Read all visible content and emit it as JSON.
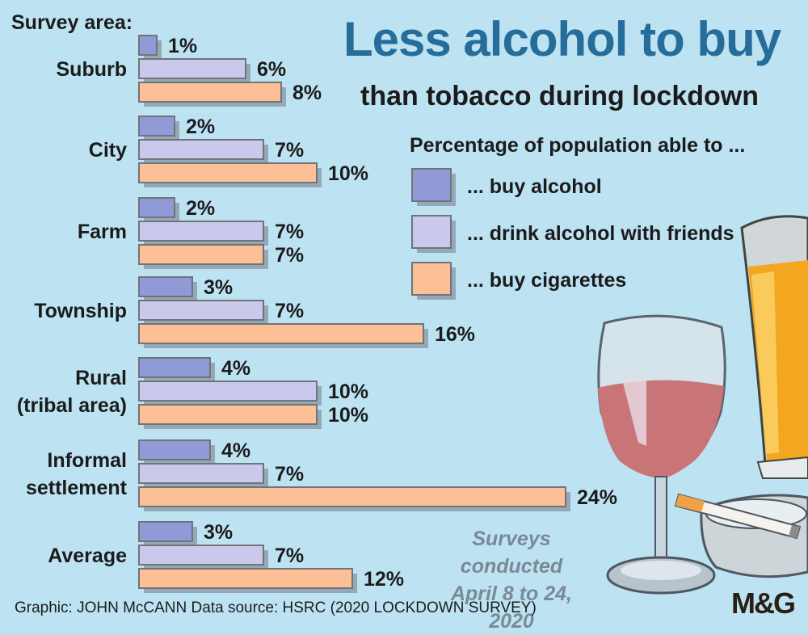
{
  "title": "Less alcohol to buy",
  "subtitle": "than tobacco during lockdown",
  "survey_area_label": "Survey area:",
  "legend_title": "Percentage of population able to ...",
  "note_lines": [
    "Surveys conducted",
    "April 8 to 24, 2020"
  ],
  "footer": "Graphic: JOHN McCANN  Data source: HSRC (2020 LOCKDOWN SURVEY)",
  "brand": "M&G",
  "colors": {
    "background": "#bde3f3",
    "title": "#276d99",
    "buy_alcohol": "#8f9ad6",
    "drink_with_friends": "#cbc9eb",
    "buy_cigarettes": "#fcbf96",
    "shadow": "#93a9b8",
    "outline": "#6f7479"
  },
  "chart_data": {
    "type": "bar",
    "orientation": "horizontal",
    "categories": [
      [
        "Suburb"
      ],
      [
        "City"
      ],
      [
        "Farm"
      ],
      [
        "Township"
      ],
      [
        "Rural",
        "(tribal area)"
      ],
      [
        "Informal",
        "settlement"
      ],
      [
        "Average"
      ]
    ],
    "series": [
      {
        "name": "... buy alcohol",
        "color": "#8f9ad6",
        "values": [
          1,
          2,
          2,
          3,
          4,
          4,
          3
        ]
      },
      {
        "name": "... drink alcohol with friends",
        "color": "#cbc9eb",
        "values": [
          6,
          7,
          7,
          7,
          10,
          7,
          7
        ]
      },
      {
        "name": "... buy cigarettes",
        "color": "#fcbf96",
        "values": [
          8,
          10,
          7,
          16,
          10,
          24,
          12
        ]
      }
    ],
    "value_suffix": "%",
    "xlim": [
      0,
      24
    ],
    "grid": false,
    "legend_position": "right"
  }
}
